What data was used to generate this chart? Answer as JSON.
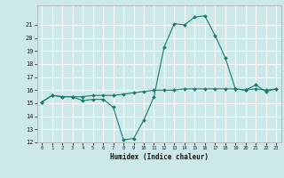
{
  "title": "",
  "xlabel": "Humidex (Indice chaleur)",
  "ylabel": "",
  "background_color": "#cce8e8",
  "grid_color": "#ffffff",
  "line_color": "#1a7a6e",
  "x_values": [
    0,
    1,
    2,
    3,
    4,
    5,
    6,
    7,
    8,
    9,
    10,
    11,
    12,
    13,
    14,
    15,
    16,
    17,
    18,
    19,
    20,
    21,
    22,
    23
  ],
  "y_series1": [
    15.1,
    15.6,
    15.5,
    15.5,
    15.2,
    15.3,
    15.3,
    14.7,
    12.2,
    12.3,
    13.7,
    15.5,
    19.3,
    21.1,
    21.0,
    21.6,
    21.7,
    20.2,
    18.5,
    16.1,
    16.0,
    16.4,
    15.9,
    16.1
  ],
  "y_series2": [
    15.1,
    15.6,
    15.5,
    15.5,
    15.5,
    15.6,
    15.6,
    15.6,
    15.7,
    15.8,
    15.9,
    16.0,
    16.0,
    16.0,
    16.1,
    16.1,
    16.1,
    16.1,
    16.1,
    16.1,
    16.0,
    16.1,
    16.0,
    16.1
  ],
  "ylim": [
    12,
    22
  ],
  "xlim": [
    -0.5,
    23.5
  ],
  "yticks": [
    12,
    13,
    14,
    15,
    16,
    17,
    18,
    19,
    20,
    21
  ],
  "xticks": [
    0,
    1,
    2,
    3,
    4,
    5,
    6,
    7,
    8,
    9,
    10,
    11,
    12,
    13,
    14,
    15,
    16,
    17,
    18,
    19,
    20,
    21,
    22,
    23
  ]
}
